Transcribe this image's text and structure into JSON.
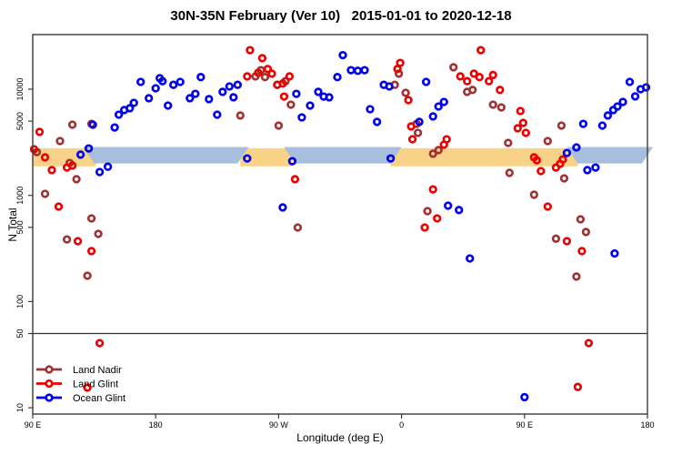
{
  "title": "30N-35N February (Ver 10)   2015-01-01 to 2020-12-18",
  "chart_data": {
    "type": "scatter",
    "title": "30N-35N February (Ver 10)   2015-01-01 to 2020-12-18",
    "xlabel": "Longitude (deg E)",
    "ylabel": "N Total",
    "y_scale": "log10",
    "x_range": [
      90,
      540
    ],
    "y_range": [
      8.7,
      32600
    ],
    "grid": false,
    "hline": 50,
    "x_ticks": [
      {
        "pos": 90,
        "label": "90 E"
      },
      {
        "pos": 180,
        "label": "180"
      },
      {
        "pos": 270,
        "label": "90 W"
      },
      {
        "pos": 360,
        "label": "0"
      },
      {
        "pos": 450,
        "label": "90 E"
      },
      {
        "pos": 540,
        "label": "180"
      }
    ],
    "y_ticks": [
      {
        "v": 10,
        "label": "10"
      },
      {
        "v": 50,
        "label": "50"
      },
      {
        "v": 100,
        "label": "100"
      },
      {
        "v": 500,
        "label": "500"
      },
      {
        "v": 1000,
        "label": "1000"
      },
      {
        "v": 5000,
        "label": "5000"
      },
      {
        "v": 10000,
        "label": "10000"
      }
    ],
    "bands": [
      {
        "name": "land-band",
        "color": "#F7D287",
        "n_low": 1880,
        "n_high": 2780,
        "segments": [
          [
            90,
            136
          ],
          [
            242,
            280
          ],
          [
            352,
            489
          ]
        ],
        "slant": false
      },
      {
        "name": "ocean-band",
        "color": "#A8BEDD",
        "n_low": 2000,
        "n_high": 2850,
        "segments": [
          [
            131,
            244
          ],
          [
            278,
            356
          ],
          [
            485,
            540
          ]
        ],
        "slant": true
      }
    ],
    "legend": {
      "position": "bottom-left",
      "entries": [
        {
          "label": "Land Nadir",
          "color": "#A03232"
        },
        {
          "label": "Land Glint",
          "color": "#EE0000"
        },
        {
          "label": "Ocean Glint",
          "color": "#0000EE"
        }
      ]
    },
    "series": [
      {
        "name": "Land Nadir",
        "color": "#A03232",
        "points": [
          [
            119,
            4630
          ],
          [
            110,
            3250
          ],
          [
            93,
            2560
          ],
          [
            117,
            2020
          ],
          [
            133,
            4720
          ],
          [
            122,
            1420
          ],
          [
            99,
            1035
          ],
          [
            133,
            607
          ],
          [
            115,
            385
          ],
          [
            138,
            434
          ],
          [
            130,
            175
          ],
          [
            242,
            5650
          ],
          [
            253,
            13200
          ],
          [
            260,
            13000
          ],
          [
            257,
            15100
          ],
          [
            269,
            11000
          ],
          [
            275,
            11900
          ],
          [
            279,
            7150
          ],
          [
            270,
            4540
          ],
          [
            284,
            498
          ],
          [
            355,
            11000
          ],
          [
            358,
            14000
          ],
          [
            363,
            9250
          ],
          [
            371,
            4720
          ],
          [
            372,
            3880
          ],
          [
            383,
            2470
          ],
          [
            387,
            2670
          ],
          [
            379,
            711
          ],
          [
            398,
            16100
          ],
          [
            408,
            9440
          ],
          [
            412,
            9850
          ],
          [
            427,
            7150
          ],
          [
            433,
            6740
          ],
          [
            438,
            3120
          ],
          [
            439,
            1630
          ],
          [
            457,
            1015
          ],
          [
            467,
            3250
          ],
          [
            477,
            4540
          ],
          [
            479,
            1445
          ],
          [
            473,
            391
          ],
          [
            491,
            595
          ],
          [
            495,
            452
          ],
          [
            488,
            172
          ]
        ]
      },
      {
        "name": "Land Glint",
        "color": "#EE0000",
        "points": [
          [
            95,
            3960
          ],
          [
            91,
            2720
          ],
          [
            99,
            2280
          ],
          [
            104,
            1730
          ],
          [
            115,
            1830
          ],
          [
            119,
            1910
          ],
          [
            109,
            785
          ],
          [
            123,
            371
          ],
          [
            133,
            299
          ],
          [
            139,
            40.7
          ],
          [
            130,
            15.5
          ],
          [
            249,
            23300
          ],
          [
            258,
            19600
          ],
          [
            262,
            15500
          ],
          [
            255,
            14300
          ],
          [
            265,
            14000
          ],
          [
            247,
            13200
          ],
          [
            278,
            13200
          ],
          [
            273,
            11300
          ],
          [
            269,
            11000
          ],
          [
            274,
            8530
          ],
          [
            282,
            1420
          ],
          [
            357,
            15500
          ],
          [
            359,
            17700
          ],
          [
            365,
            7890
          ],
          [
            367,
            4460
          ],
          [
            368,
            3380
          ],
          [
            391,
            3000
          ],
          [
            393,
            3380
          ],
          [
            383,
            1140
          ],
          [
            386,
            607
          ],
          [
            377,
            498
          ],
          [
            418,
            23300
          ],
          [
            403,
            13200
          ],
          [
            413,
            14000
          ],
          [
            408,
            11900
          ],
          [
            417,
            13000
          ],
          [
            424,
            11900
          ],
          [
            427,
            13600
          ],
          [
            432,
            9850
          ],
          [
            445,
            4290
          ],
          [
            447,
            6230
          ],
          [
            449,
            4820
          ],
          [
            451,
            3880
          ],
          [
            457,
            2280
          ],
          [
            459,
            2140
          ],
          [
            462,
            1695
          ],
          [
            473,
            1830
          ],
          [
            476,
            1980
          ],
          [
            478,
            2180
          ],
          [
            467,
            785
          ],
          [
            481,
            371
          ],
          [
            492,
            299
          ],
          [
            497,
            40.7
          ],
          [
            489,
            15.7
          ]
        ]
      },
      {
        "name": "Ocean Glint",
        "color": "#0000EE",
        "points": [
          [
            134,
            4630
          ],
          [
            125,
            2420
          ],
          [
            131,
            2770
          ],
          [
            139,
            1660
          ],
          [
            145,
            1860
          ],
          [
            150,
            4360
          ],
          [
            153,
            5760
          ],
          [
            157,
            6360
          ],
          [
            161,
            6620
          ],
          [
            164,
            7440
          ],
          [
            169,
            11700
          ],
          [
            175,
            8220
          ],
          [
            180,
            10200
          ],
          [
            183,
            12700
          ],
          [
            185,
            11900
          ],
          [
            189,
            7010
          ],
          [
            193,
            11000
          ],
          [
            198,
            11700
          ],
          [
            205,
            8220
          ],
          [
            209,
            9050
          ],
          [
            213,
            13000
          ],
          [
            219,
            8060
          ],
          [
            225,
            5760
          ],
          [
            229,
            9440
          ],
          [
            234,
            10600
          ],
          [
            237,
            8390
          ],
          [
            240,
            11000
          ],
          [
            247,
            2230
          ],
          [
            273,
            770
          ],
          [
            280,
            2100
          ],
          [
            283,
            9050
          ],
          [
            287,
            5420
          ],
          [
            293,
            7010
          ],
          [
            299,
            9440
          ],
          [
            303,
            8530
          ],
          [
            307,
            8390
          ],
          [
            313,
            13000
          ],
          [
            317,
            20900
          ],
          [
            323,
            15100
          ],
          [
            328,
            14900
          ],
          [
            333,
            15100
          ],
          [
            337,
            6480
          ],
          [
            342,
            4920
          ],
          [
            347,
            11000
          ],
          [
            351,
            10600
          ],
          [
            352,
            2230
          ],
          [
            373,
            4920
          ],
          [
            378,
            11700
          ],
          [
            383,
            5540
          ],
          [
            387,
            6870
          ],
          [
            391,
            7580
          ],
          [
            394,
            800
          ],
          [
            402,
            728
          ],
          [
            410,
            255
          ],
          [
            450,
            12.6
          ],
          [
            481,
            2510
          ],
          [
            488,
            2830
          ],
          [
            493,
            4720
          ],
          [
            496,
            1730
          ],
          [
            502,
            1830
          ],
          [
            507,
            4540
          ],
          [
            511,
            5650
          ],
          [
            515,
            6360
          ],
          [
            518,
            6870
          ],
          [
            522,
            7580
          ],
          [
            527,
            11700
          ],
          [
            531,
            8560
          ],
          [
            535,
            10000
          ],
          [
            539,
            10400
          ],
          [
            516,
            284
          ]
        ]
      }
    ]
  }
}
